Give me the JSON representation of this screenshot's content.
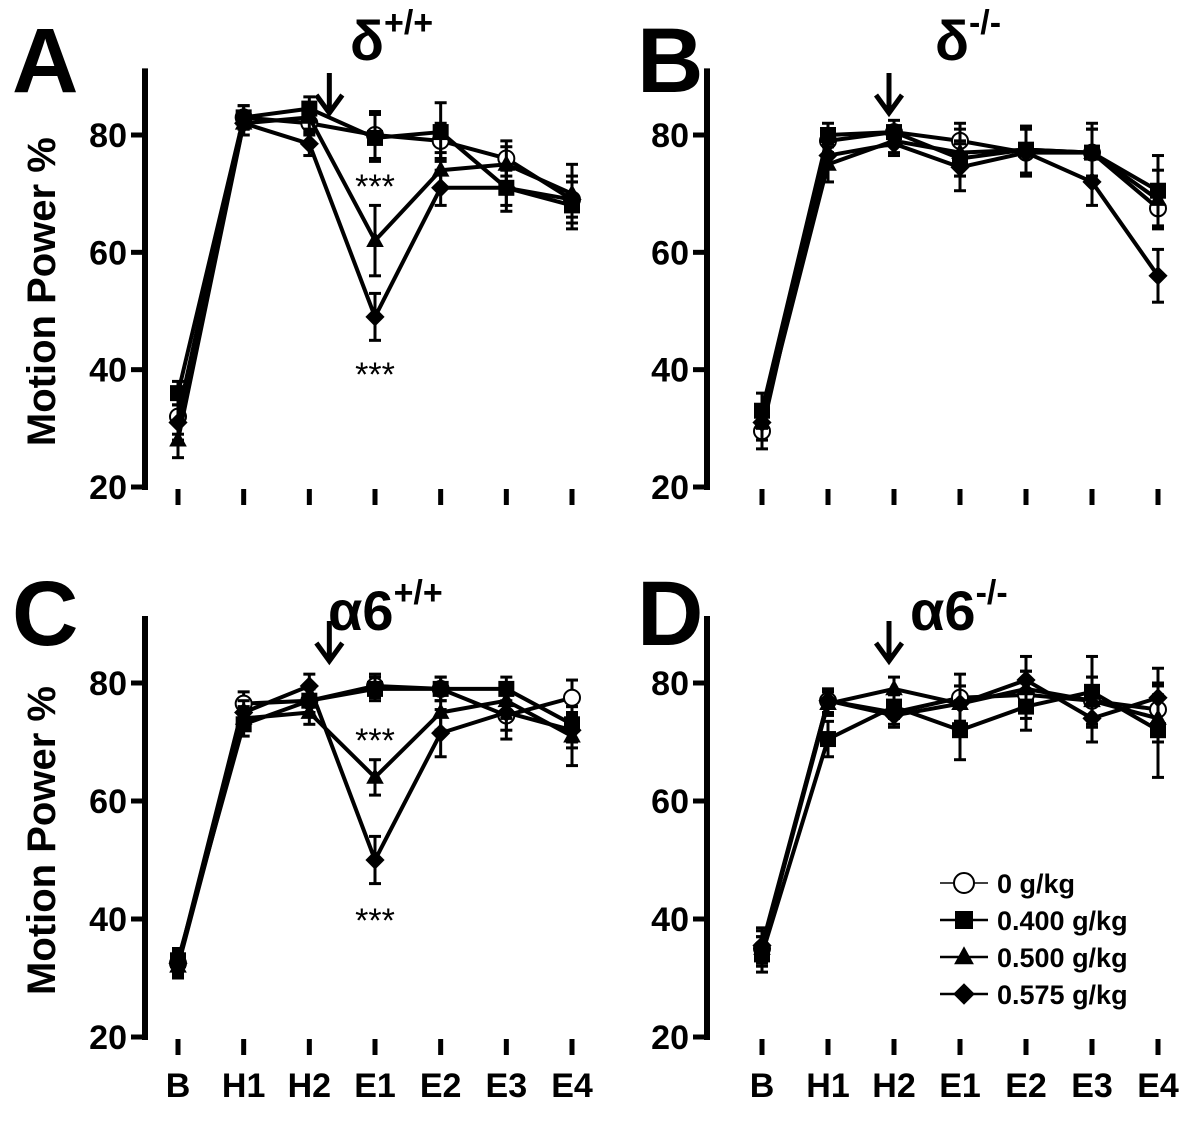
{
  "chart_data": [
    {
      "type": "line",
      "panel_label": "A",
      "title": "δ",
      "title_sup": "+/+",
      "ylabel": "Motion Power %",
      "ylim": [
        20,
        90
      ],
      "yticks": [
        "20",
        "40",
        "60",
        "80"
      ],
      "categories": [
        "B",
        "H1",
        "H2",
        "E1",
        "E2",
        "E3",
        "E4"
      ],
      "show_xticklabels": false,
      "arrow_after": "H2",
      "annotations": [
        {
          "text": "***",
          "at": "E1",
          "value": 73
        },
        {
          "text": "***",
          "at": "E1",
          "value": 41
        }
      ],
      "series": [
        {
          "name": "0 g/kg",
          "marker": "circle",
          "values": [
            32,
            83,
            82,
            80,
            79,
            76,
            69
          ],
          "sem": [
            3,
            2,
            2,
            4,
            3,
            3,
            4
          ]
        },
        {
          "name": "0.400 g/kg",
          "marker": "square",
          "values": [
            36,
            83,
            84.5,
            79.5,
            80.5,
            71,
            68
          ],
          "sem": [
            2,
            2,
            2,
            4,
            5,
            4,
            4
          ]
        },
        {
          "name": "0.500 g/kg",
          "marker": "triangle",
          "values": [
            28,
            82,
            83,
            62,
            74,
            75,
            70
          ],
          "sem": [
            3,
            2,
            2,
            6,
            3,
            3,
            5
          ]
        },
        {
          "name": "0.575 g/kg",
          "marker": "diamond",
          "values": [
            31,
            82,
            78.5,
            49,
            71,
            71,
            69
          ],
          "sem": [
            3,
            2,
            2,
            4,
            3,
            3,
            3
          ]
        }
      ]
    },
    {
      "type": "line",
      "panel_label": "B",
      "title": "δ",
      "title_sup": "-/-",
      "ylabel": "",
      "ylim": [
        20,
        90
      ],
      "yticks": [
        "20",
        "40",
        "60",
        "80"
      ],
      "categories": [
        "B",
        "H1",
        "H2",
        "E1",
        "E2",
        "E3",
        "E4"
      ],
      "show_xticklabels": false,
      "arrow_after": "H2",
      "annotations": [],
      "series": [
        {
          "name": "0 g/kg",
          "marker": "circle",
          "values": [
            29.5,
            79,
            80.5,
            79,
            77,
            77,
            67.5
          ],
          "sem": [
            3,
            2,
            2,
            3,
            4,
            4,
            3
          ]
        },
        {
          "name": "0.400 g/kg",
          "marker": "square",
          "values": [
            33,
            80,
            80.5,
            76,
            77.5,
            77,
            70.5
          ],
          "sem": [
            3,
            2,
            1,
            3,
            4,
            5,
            6
          ]
        },
        {
          "name": "0.500 g/kg",
          "marker": "triangle",
          "values": [
            31,
            75,
            79,
            77,
            77.5,
            77,
            69
          ],
          "sem": [
            3,
            3,
            2,
            4,
            4,
            4,
            5
          ]
        },
        {
          "name": "0.575 g/kg",
          "marker": "diamond",
          "values": [
            31,
            76.5,
            78.5,
            74.5,
            77,
            72,
            56
          ],
          "sem": [
            3,
            2,
            2,
            4,
            4,
            4,
            4.5
          ]
        }
      ]
    },
    {
      "type": "line",
      "panel_label": "C",
      "title": "α6",
      "title_sup": "+/+",
      "ylabel": "Motion Power %",
      "ylim": [
        20,
        90
      ],
      "yticks": [
        "20",
        "40",
        "60",
        "80"
      ],
      "categories": [
        "B",
        "H1",
        "H2",
        "E1",
        "E2",
        "E3",
        "E4"
      ],
      "show_xticklabels": true,
      "arrow_after": "H2",
      "annotations": [
        {
          "text": "***",
          "at": "E1",
          "value": 72
        },
        {
          "text": "***",
          "at": "E1",
          "value": 41.5
        }
      ],
      "series": [
        {
          "name": "0 g/kg",
          "marker": "circle",
          "values": [
            32.5,
            76.5,
            77,
            79.5,
            79,
            74.5,
            77.5
          ],
          "sem": [
            2,
            2,
            2,
            2,
            2,
            4,
            3
          ]
        },
        {
          "name": "0.400 g/kg",
          "marker": "square",
          "values": [
            33,
            73,
            77,
            79,
            79,
            79,
            73
          ],
          "sem": [
            2,
            2,
            2,
            2,
            2,
            2,
            3
          ]
        },
        {
          "name": "0.500 g/kg",
          "marker": "triangle",
          "values": [
            32,
            74,
            75,
            64,
            75,
            77,
            71
          ],
          "sem": [
            2,
            2,
            2,
            3,
            3,
            3,
            5
          ]
        },
        {
          "name": "0.575 g/kg",
          "marker": "diamond",
          "values": [
            32.5,
            75,
            79.5,
            50,
            71.5,
            75,
            72
          ],
          "sem": [
            2,
            2,
            2,
            4,
            4,
            3,
            3
          ]
        }
      ]
    },
    {
      "type": "line",
      "panel_label": "D",
      "title": "α6",
      "title_sup": "-/-",
      "ylabel": "",
      "ylim": [
        20,
        90
      ],
      "yticks": [
        "20",
        "40",
        "60",
        "80"
      ],
      "categories": [
        "B",
        "H1",
        "H2",
        "E1",
        "E2",
        "E3",
        "E4"
      ],
      "show_xticklabels": true,
      "arrow_after": "H2",
      "annotations": [],
      "series": [
        {
          "name": "0 g/kg",
          "marker": "circle",
          "values": [
            35,
            77,
            75,
            77.5,
            78,
            77,
            75.5
          ],
          "sem": [
            2,
            2,
            2,
            4,
            4,
            4,
            4
          ]
        },
        {
          "name": "0.400 g/kg",
          "marker": "square",
          "values": [
            34,
            70.5,
            76,
            72,
            76,
            78.5,
            72
          ],
          "sem": [
            3,
            3,
            2,
            5,
            4,
            6,
            8
          ]
        },
        {
          "name": "0.500 g/kg",
          "marker": "triangle",
          "values": [
            35,
            76.5,
            79,
            76.5,
            79,
            77,
            74
          ],
          "sem": [
            3,
            2,
            2,
            3,
            3,
            4,
            4
          ]
        },
        {
          "name": "0.575 g/kg",
          "marker": "diamond",
          "values": [
            35.5,
            77,
            74.5,
            76.5,
            80.5,
            74,
            77.5
          ],
          "sem": [
            3,
            2,
            2,
            3,
            4,
            4,
            5
          ]
        }
      ],
      "legend": {
        "position": "bottom-right",
        "entries": [
          "0 g/kg",
          "0.400 g/kg",
          "0.500 g/kg",
          "0.575 g/kg"
        ]
      }
    }
  ]
}
